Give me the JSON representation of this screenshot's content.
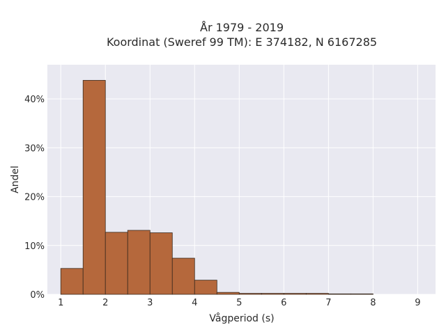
{
  "chart_data": {
    "type": "bar",
    "title_line1": "År 1979 - 2019",
    "title_line2": "Koordinat (Sweref 99 TM): E 374182, N 6167285",
    "xlabel": "Vågperiod (s)",
    "ylabel": "Andel",
    "xlim": [
      0.7,
      9.4
    ],
    "ylim": [
      0,
      0.47
    ],
    "xticks": [
      1,
      2,
      3,
      4,
      5,
      6,
      7,
      8,
      9
    ],
    "yticks": [
      0,
      0.1,
      0.2,
      0.3,
      0.4
    ],
    "ytick_labels": [
      "0%",
      "10%",
      "20%",
      "30%",
      "40%"
    ],
    "bin_width": 0.5,
    "bins": [
      {
        "x0": 1.0,
        "x1": 1.5,
        "value": 0.053
      },
      {
        "x0": 1.5,
        "x1": 2.0,
        "value": 0.438
      },
      {
        "x0": 2.0,
        "x1": 2.5,
        "value": 0.127
      },
      {
        "x0": 2.5,
        "x1": 3.0,
        "value": 0.131
      },
      {
        "x0": 3.0,
        "x1": 3.5,
        "value": 0.126
      },
      {
        "x0": 3.5,
        "x1": 4.0,
        "value": 0.074
      },
      {
        "x0": 4.0,
        "x1": 4.5,
        "value": 0.029
      },
      {
        "x0": 4.5,
        "x1": 5.0,
        "value": 0.004
      },
      {
        "x0": 5.0,
        "x1": 5.5,
        "value": 0.002
      },
      {
        "x0": 5.5,
        "x1": 6.0,
        "value": 0.002
      },
      {
        "x0": 6.0,
        "x1": 6.5,
        "value": 0.002
      },
      {
        "x0": 6.5,
        "x1": 7.0,
        "value": 0.002
      },
      {
        "x0": 7.0,
        "x1": 7.5,
        "value": 0.001
      },
      {
        "x0": 7.5,
        "x1": 8.0,
        "value": 0.001
      }
    ],
    "grid": true,
    "colors": {
      "bar_fill": "#b5683c",
      "bar_edge": "#3a2a1e",
      "plot_bg": "#e9e9f1",
      "grid": "#ffffff"
    }
  }
}
